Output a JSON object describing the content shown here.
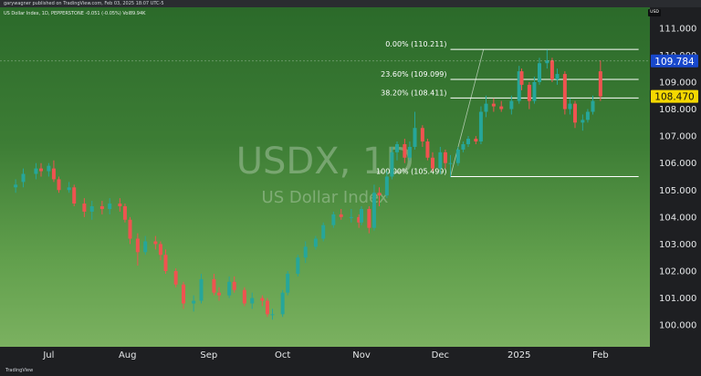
{
  "header": {
    "publisher_line": "garywagner published on TradingView.com, Feb 03, 2025 18:07 UTC-5",
    "symbol_line": "US Dollar Index, 1D, PEPPERSTONE  -0.051 (-0.05%)  Vol89.94K",
    "currency_tag": "USD"
  },
  "watermark": {
    "symbol": "USDX, 1D",
    "name": "US Dollar Index"
  },
  "footer": {
    "brand": "TradingView"
  },
  "colors": {
    "up": "#26a69a",
    "down": "#ef5350",
    "fib_line": "#ffffff",
    "price_high": "#1848cc",
    "price_last": "#f5d800"
  },
  "chart_data": {
    "type": "candlestick",
    "ylim": [
      99.6,
      111.5
    ],
    "yticks": [
      100.0,
      101.0,
      102.0,
      103.0,
      104.0,
      105.0,
      106.0,
      107.0,
      108.0,
      109.0,
      110.0,
      111.0
    ],
    "ytick_labels": [
      "100.000",
      "101.000",
      "102.000",
      "103.000",
      "104.000",
      "105.000",
      "106.000",
      "107.000",
      "108.000",
      "109.000",
      "110.000",
      "111.000"
    ],
    "x_start": "2024-06-14",
    "x_end": "2025-02-21",
    "xticks": [
      {
        "date": "2024-07-01",
        "label": "Jul"
      },
      {
        "date": "2024-08-01",
        "label": "Aug"
      },
      {
        "date": "2024-09-02",
        "label": "Sep"
      },
      {
        "date": "2024-10-01",
        "label": "Oct"
      },
      {
        "date": "2024-11-01",
        "label": "Nov"
      },
      {
        "date": "2024-12-02",
        "label": "Dec"
      },
      {
        "date": "2025-01-02",
        "label": "2025"
      },
      {
        "date": "2025-02-03",
        "label": "Feb"
      }
    ],
    "candles": [
      {
        "date": "2024-06-18",
        "o": 105.1,
        "h": 105.4,
        "l": 104.9,
        "c": 105.2
      },
      {
        "date": "2024-06-21",
        "o": 105.3,
        "h": 105.8,
        "l": 105.1,
        "c": 105.6
      },
      {
        "date": "2024-06-26",
        "o": 105.6,
        "h": 106.0,
        "l": 105.4,
        "c": 105.8
      },
      {
        "date": "2024-06-28",
        "o": 105.8,
        "h": 106.0,
        "l": 105.5,
        "c": 105.7
      },
      {
        "date": "2024-07-01",
        "o": 105.7,
        "h": 106.0,
        "l": 105.5,
        "c": 105.9
      },
      {
        "date": "2024-07-03",
        "o": 105.8,
        "h": 106.1,
        "l": 105.3,
        "c": 105.4
      },
      {
        "date": "2024-07-05",
        "o": 105.4,
        "h": 105.5,
        "l": 104.9,
        "c": 105.0
      },
      {
        "date": "2024-07-09",
        "o": 105.0,
        "h": 105.3,
        "l": 104.9,
        "c": 105.1
      },
      {
        "date": "2024-07-11",
        "o": 105.1,
        "h": 105.2,
        "l": 104.4,
        "c": 104.5
      },
      {
        "date": "2024-07-15",
        "o": 104.5,
        "h": 104.7,
        "l": 104.0,
        "c": 104.2
      },
      {
        "date": "2024-07-18",
        "o": 104.2,
        "h": 104.6,
        "l": 103.9,
        "c": 104.4
      },
      {
        "date": "2024-07-22",
        "o": 104.4,
        "h": 104.6,
        "l": 104.1,
        "c": 104.3
      },
      {
        "date": "2024-07-25",
        "o": 104.3,
        "h": 104.7,
        "l": 104.1,
        "c": 104.5
      },
      {
        "date": "2024-07-29",
        "o": 104.5,
        "h": 104.7,
        "l": 104.2,
        "c": 104.4
      },
      {
        "date": "2024-07-31",
        "o": 104.4,
        "h": 104.5,
        "l": 103.8,
        "c": 103.9
      },
      {
        "date": "2024-08-02",
        "o": 103.9,
        "h": 104.0,
        "l": 103.0,
        "c": 103.2
      },
      {
        "date": "2024-08-05",
        "o": 103.2,
        "h": 103.4,
        "l": 102.2,
        "c": 102.7
      },
      {
        "date": "2024-08-08",
        "o": 102.7,
        "h": 103.3,
        "l": 102.6,
        "c": 103.1
      },
      {
        "date": "2024-08-12",
        "o": 103.1,
        "h": 103.3,
        "l": 102.8,
        "c": 103.0
      },
      {
        "date": "2024-08-14",
        "o": 103.0,
        "h": 103.1,
        "l": 102.4,
        "c": 102.6
      },
      {
        "date": "2024-08-16",
        "o": 102.6,
        "h": 102.8,
        "l": 101.9,
        "c": 102.0
      },
      {
        "date": "2024-08-20",
        "o": 102.0,
        "h": 102.1,
        "l": 101.4,
        "c": 101.5
      },
      {
        "date": "2024-08-23",
        "o": 101.5,
        "h": 101.6,
        "l": 100.6,
        "c": 100.8
      },
      {
        "date": "2024-08-27",
        "o": 100.8,
        "h": 101.1,
        "l": 100.5,
        "c": 100.9
      },
      {
        "date": "2024-08-30",
        "o": 100.9,
        "h": 101.9,
        "l": 100.8,
        "c": 101.7
      },
      {
        "date": "2024-09-04",
        "o": 101.7,
        "h": 101.9,
        "l": 101.1,
        "c": 101.2
      },
      {
        "date": "2024-09-06",
        "o": 101.2,
        "h": 101.4,
        "l": 100.9,
        "c": 101.1
      },
      {
        "date": "2024-09-10",
        "o": 101.1,
        "h": 101.8,
        "l": 101.0,
        "c": 101.6
      },
      {
        "date": "2024-09-12",
        "o": 101.6,
        "h": 101.8,
        "l": 101.2,
        "c": 101.3
      },
      {
        "date": "2024-09-16",
        "o": 101.3,
        "h": 101.4,
        "l": 100.7,
        "c": 100.8
      },
      {
        "date": "2024-09-19",
        "o": 100.8,
        "h": 101.2,
        "l": 100.6,
        "c": 101.0
      },
      {
        "date": "2024-09-23",
        "o": 101.0,
        "h": 101.1,
        "l": 100.7,
        "c": 100.9
      },
      {
        "date": "2024-09-25",
        "o": 100.9,
        "h": 101.0,
        "l": 100.3,
        "c": 100.4
      },
      {
        "date": "2024-09-27",
        "o": 100.4,
        "h": 100.6,
        "l": 100.2,
        "c": 100.4
      },
      {
        "date": "2024-10-01",
        "o": 100.4,
        "h": 101.3,
        "l": 100.3,
        "c": 101.2
      },
      {
        "date": "2024-10-03",
        "o": 101.2,
        "h": 102.0,
        "l": 101.1,
        "c": 101.9
      },
      {
        "date": "2024-10-07",
        "o": 101.9,
        "h": 102.6,
        "l": 101.8,
        "c": 102.5
      },
      {
        "date": "2024-10-10",
        "o": 102.5,
        "h": 103.1,
        "l": 102.3,
        "c": 102.9
      },
      {
        "date": "2024-10-14",
        "o": 102.9,
        "h": 103.3,
        "l": 102.8,
        "c": 103.2
      },
      {
        "date": "2024-10-17",
        "o": 103.2,
        "h": 103.8,
        "l": 103.1,
        "c": 103.7
      },
      {
        "date": "2024-10-21",
        "o": 103.7,
        "h": 104.2,
        "l": 103.6,
        "c": 104.1
      },
      {
        "date": "2024-10-24",
        "o": 104.1,
        "h": 104.3,
        "l": 103.9,
        "c": 104.0
      },
      {
        "date": "2024-10-28",
        "o": 104.0,
        "h": 104.3,
        "l": 103.8,
        "c": 104.0
      },
      {
        "date": "2024-10-31",
        "o": 104.0,
        "h": 104.1,
        "l": 103.6,
        "c": 103.8
      },
      {
        "date": "2024-11-01",
        "o": 103.8,
        "h": 104.4,
        "l": 103.7,
        "c": 104.3
      },
      {
        "date": "2024-11-04",
        "o": 104.3,
        "h": 104.4,
        "l": 103.4,
        "c": 103.6
      },
      {
        "date": "2024-11-06",
        "o": 103.6,
        "h": 105.2,
        "l": 103.5,
        "c": 104.9
      },
      {
        "date": "2024-11-08",
        "o": 104.9,
        "h": 105.1,
        "l": 104.4,
        "c": 104.8
      },
      {
        "date": "2024-11-11",
        "o": 104.8,
        "h": 105.7,
        "l": 104.7,
        "c": 105.5
      },
      {
        "date": "2024-11-13",
        "o": 105.5,
        "h": 106.6,
        "l": 105.4,
        "c": 106.4
      },
      {
        "date": "2024-11-15",
        "o": 106.4,
        "h": 106.8,
        "l": 106.1,
        "c": 106.7
      },
      {
        "date": "2024-11-18",
        "o": 106.7,
        "h": 106.9,
        "l": 106.0,
        "c": 106.2
      },
      {
        "date": "2024-11-20",
        "o": 106.2,
        "h": 106.8,
        "l": 106.1,
        "c": 106.6
      },
      {
        "date": "2024-11-22",
        "o": 106.6,
        "h": 107.9,
        "l": 106.5,
        "c": 107.3
      },
      {
        "date": "2024-11-25",
        "o": 107.3,
        "h": 107.4,
        "l": 106.6,
        "c": 106.8
      },
      {
        "date": "2024-11-27",
        "o": 106.8,
        "h": 106.9,
        "l": 106.1,
        "c": 106.2
      },
      {
        "date": "2024-11-29",
        "o": 106.2,
        "h": 106.4,
        "l": 105.7,
        "c": 105.8
      },
      {
        "date": "2024-12-02",
        "o": 105.8,
        "h": 106.6,
        "l": 105.6,
        "c": 106.4
      },
      {
        "date": "2024-12-04",
        "o": 106.4,
        "h": 106.5,
        "l": 105.8,
        "c": 106.0
      },
      {
        "date": "2024-12-06",
        "o": 106.0,
        "h": 106.3,
        "l": 105.5,
        "c": 106.0
      },
      {
        "date": "2024-12-09",
        "o": 106.0,
        "h": 106.6,
        "l": 105.9,
        "c": 106.5
      },
      {
        "date": "2024-12-11",
        "o": 106.5,
        "h": 106.8,
        "l": 106.4,
        "c": 106.7
      },
      {
        "date": "2024-12-13",
        "o": 106.7,
        "h": 107.0,
        "l": 106.6,
        "c": 106.9
      },
      {
        "date": "2024-12-16",
        "o": 106.9,
        "h": 107.0,
        "l": 106.7,
        "c": 106.8
      },
      {
        "date": "2024-12-18",
        "o": 106.8,
        "h": 108.1,
        "l": 106.7,
        "c": 107.9
      },
      {
        "date": "2024-12-20",
        "o": 107.9,
        "h": 108.5,
        "l": 107.7,
        "c": 108.2
      },
      {
        "date": "2024-12-23",
        "o": 108.2,
        "h": 108.4,
        "l": 107.9,
        "c": 108.1
      },
      {
        "date": "2024-12-26",
        "o": 108.1,
        "h": 108.3,
        "l": 107.9,
        "c": 108.0
      },
      {
        "date": "2024-12-30",
        "o": 108.0,
        "h": 108.5,
        "l": 107.8,
        "c": 108.3
      },
      {
        "date": "2025-01-02",
        "o": 108.3,
        "h": 109.6,
        "l": 108.2,
        "c": 109.4
      },
      {
        "date": "2025-01-03",
        "o": 109.4,
        "h": 109.5,
        "l": 108.7,
        "c": 108.9
      },
      {
        "date": "2025-01-06",
        "o": 108.9,
        "h": 109.0,
        "l": 108.0,
        "c": 108.3
      },
      {
        "date": "2025-01-08",
        "o": 108.3,
        "h": 109.2,
        "l": 108.2,
        "c": 109.0
      },
      {
        "date": "2025-01-10",
        "o": 109.0,
        "h": 109.9,
        "l": 108.9,
        "c": 109.7
      },
      {
        "date": "2025-01-13",
        "o": 109.7,
        "h": 110.2,
        "l": 109.5,
        "c": 109.8
      },
      {
        "date": "2025-01-15",
        "o": 109.8,
        "h": 109.9,
        "l": 109.0,
        "c": 109.1
      },
      {
        "date": "2025-01-17",
        "o": 109.1,
        "h": 109.5,
        "l": 108.9,
        "c": 109.3
      },
      {
        "date": "2025-01-20",
        "o": 109.3,
        "h": 109.4,
        "l": 107.8,
        "c": 108.0
      },
      {
        "date": "2025-01-22",
        "o": 108.0,
        "h": 108.4,
        "l": 107.8,
        "c": 108.2
      },
      {
        "date": "2025-01-24",
        "o": 108.2,
        "h": 108.3,
        "l": 107.3,
        "c": 107.5
      },
      {
        "date": "2025-01-27",
        "o": 107.5,
        "h": 107.8,
        "l": 107.2,
        "c": 107.6
      },
      {
        "date": "2025-01-29",
        "o": 107.6,
        "h": 108.0,
        "l": 107.5,
        "c": 107.9
      },
      {
        "date": "2025-01-31",
        "o": 107.9,
        "h": 108.5,
        "l": 107.8,
        "c": 108.3
      },
      {
        "date": "2025-02-03",
        "o": 109.4,
        "h": 109.8,
        "l": 108.3,
        "c": 108.47
      }
    ],
    "fibonacci": {
      "levels": [
        {
          "ratio": "0.00%",
          "price": 110.211,
          "label": "0.00% (110.211)"
        },
        {
          "ratio": "23.60%",
          "price": 109.099,
          "label": "23.60% (109.099)"
        },
        {
          "ratio": "38.20%",
          "price": 108.411,
          "label": "38.20% (108.411)"
        },
        {
          "ratio": "100.00%",
          "price": 105.499,
          "label": "100.00% (105.499)"
        }
      ],
      "x_from": "2024-12-06",
      "x_to": "2025-02-18"
    },
    "price_labels": [
      {
        "value": 109.784,
        "label": "109.784",
        "kind": "high"
      },
      {
        "value": 108.47,
        "label": "108.470",
        "kind": "last"
      }
    ]
  }
}
